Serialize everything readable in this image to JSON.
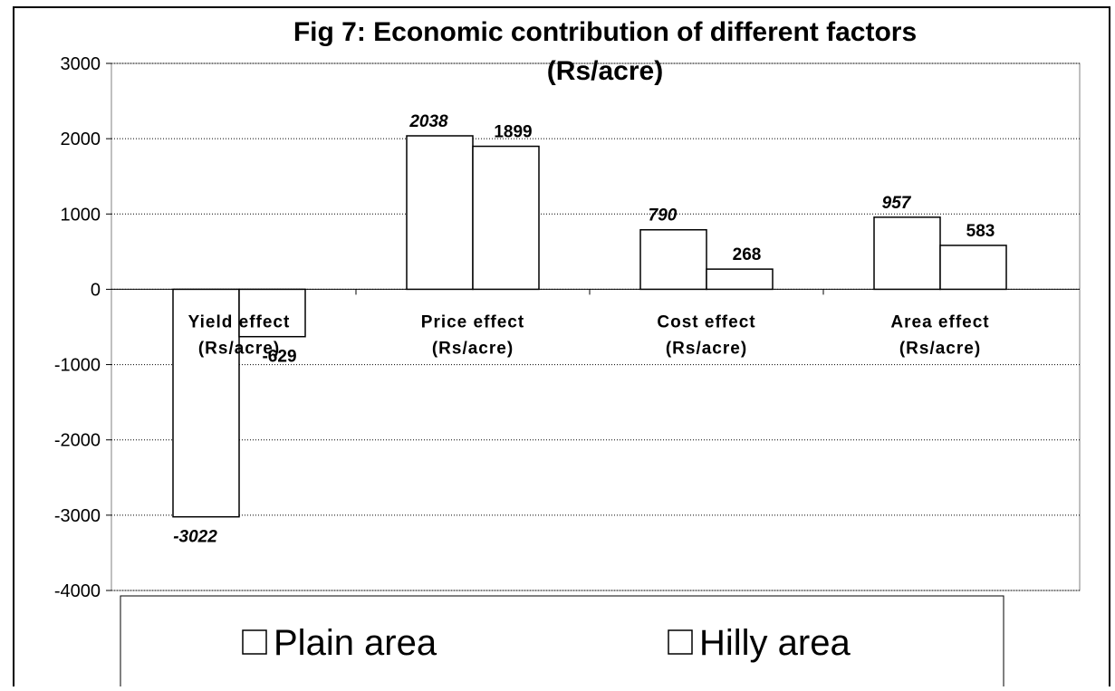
{
  "chart_data": {
    "type": "bar",
    "title": "Fig 7: Economic contribution of different factors\n(Rs/acre)",
    "categories": [
      "Yield effect\n(Rs/acre)",
      "Price effect\n(Rs/acre)",
      "Cost effect\n(Rs/acre)",
      "Area effect\n(Rs/acre)"
    ],
    "series": [
      {
        "name": "Plain area",
        "color": "#ffffff",
        "values": [
          -3022,
          2038,
          790,
          957
        ]
      },
      {
        "name": "Hilly area",
        "color": "#ffffff",
        "values": [
          -629,
          1899,
          268,
          583
        ]
      }
    ],
    "ylim": [
      -4000,
      3000
    ],
    "yticks": [
      3000,
      2000,
      1000,
      0,
      -1000,
      -2000,
      -3000,
      -4000
    ],
    "grid": true,
    "legend": "bottom"
  }
}
